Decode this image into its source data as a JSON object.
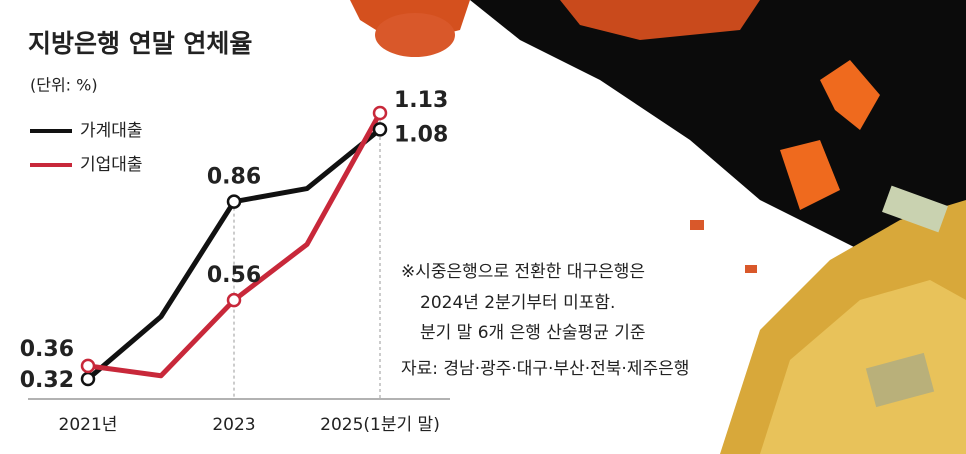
{
  "chart_data": {
    "type": "line",
    "title": "지방은행 연말 연체율",
    "unit": "(단위: %)",
    "categories": [
      "2021년",
      null,
      "2023",
      null,
      "2025(1분기 말)"
    ],
    "series": [
      {
        "name": "가계대출",
        "color": "#111111",
        "values": [
          0.32,
          0.51,
          0.86,
          0.9,
          1.08
        ],
        "value_labels": [
          "0.32",
          null,
          "0.86",
          null,
          "1.08"
        ]
      },
      {
        "name": "기업대출",
        "color": "#c8283a",
        "values": [
          0.36,
          0.33,
          0.56,
          0.73,
          1.13
        ],
        "value_labels": [
          "0.36",
          null,
          "0.56",
          null,
          "1.13"
        ]
      }
    ],
    "notes": [
      "※시중은행으로 전환한 대구은행은",
      "2024년 2분기부터 미포함.",
      "분기 말 6개 은행 산술평균 기준"
    ],
    "source": "자료: 경남·광주·대구·부산·전북·제주은행"
  }
}
